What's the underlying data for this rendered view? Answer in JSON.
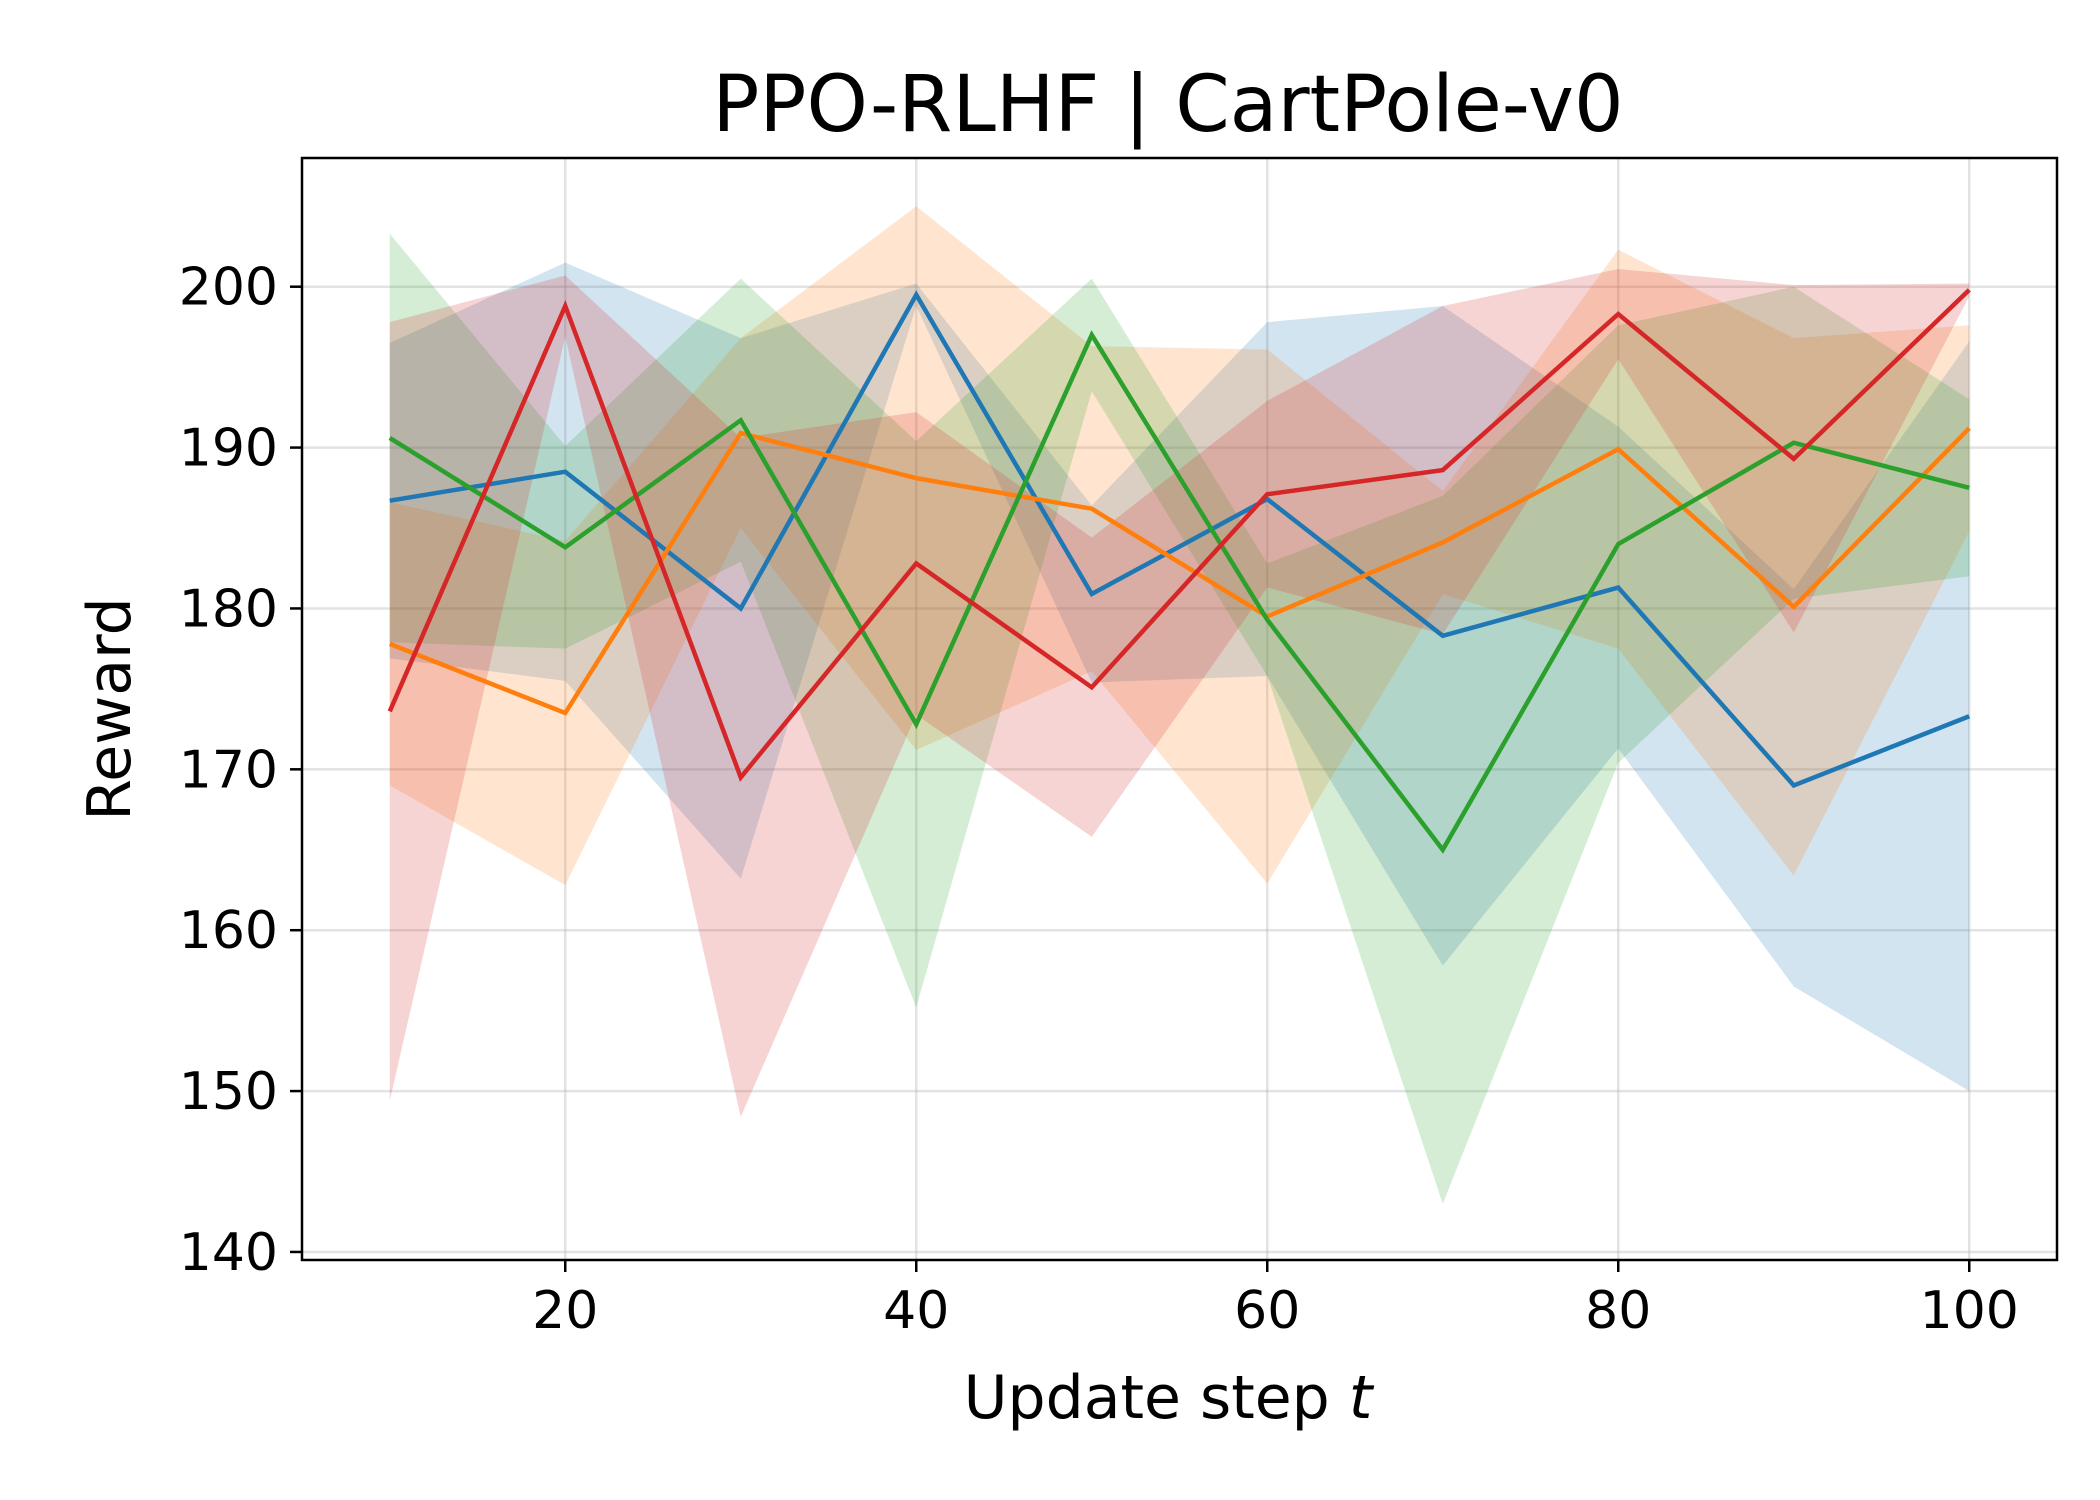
{
  "chart_data": {
    "type": "line",
    "title": "PPO-RLHF | CartPole-v0",
    "xlabel": "Update step",
    "xlabel_var": "t",
    "ylabel": "Reward",
    "xlim": [
      5,
      105
    ],
    "ylim": [
      139.5,
      208
    ],
    "xticks": [
      20,
      40,
      60,
      80,
      100
    ],
    "yticks": [
      140,
      150,
      160,
      170,
      180,
      190,
      200
    ],
    "grid": true,
    "x": [
      10,
      20,
      30,
      40,
      50,
      60,
      70,
      80,
      90,
      100
    ],
    "series": [
      {
        "color": "#1f77b4",
        "values": [
          186.7,
          188.5,
          180.0,
          199.5,
          180.9,
          186.8,
          178.3,
          181.3,
          169.0,
          173.3
        ],
        "upper": [
          196.5,
          201.5,
          196.8,
          200.2,
          186.4,
          197.8,
          198.8,
          191.3,
          181.2,
          196.6
        ],
        "lower": [
          176.9,
          175.5,
          163.2,
          198.8,
          175.4,
          175.8,
          157.8,
          171.3,
          156.5,
          150.0
        ]
      },
      {
        "color": "#ff7f0e",
        "values": [
          177.8,
          173.5,
          190.9,
          188.1,
          186.2,
          179.5,
          184.1,
          189.9,
          180.1,
          191.2
        ],
        "upper": [
          186.6,
          184.2,
          196.8,
          205.0,
          196.3,
          196.1,
          187.3,
          202.3,
          196.8,
          197.6
        ],
        "lower": [
          169.0,
          162.8,
          185.0,
          171.2,
          176.1,
          162.9,
          180.9,
          177.5,
          163.4,
          184.8
        ]
      },
      {
        "color": "#2ca02c",
        "values": [
          190.6,
          183.8,
          191.7,
          172.8,
          197.0,
          179.3,
          165.0,
          184.0,
          190.3,
          187.5
        ],
        "upper": [
          203.3,
          190.1,
          200.5,
          190.4,
          200.5,
          182.8,
          187.0,
          197.6,
          200.0,
          193.0
        ],
        "lower": [
          177.9,
          177.5,
          182.9,
          155.2,
          193.5,
          175.8,
          143.0,
          170.4,
          180.6,
          182.0
        ]
      },
      {
        "color": "#d62728",
        "values": [
          173.6,
          198.8,
          169.5,
          182.8,
          175.1,
          187.1,
          188.6,
          198.3,
          189.3,
          199.8
        ],
        "upper": [
          197.8,
          200.7,
          190.6,
          192.2,
          184.4,
          192.9,
          198.8,
          201.1,
          200.1,
          200.2
        ],
        "lower": [
          149.4,
          196.9,
          148.4,
          173.4,
          165.8,
          181.3,
          178.4,
          195.5,
          178.5,
          199.4
        ]
      }
    ]
  }
}
